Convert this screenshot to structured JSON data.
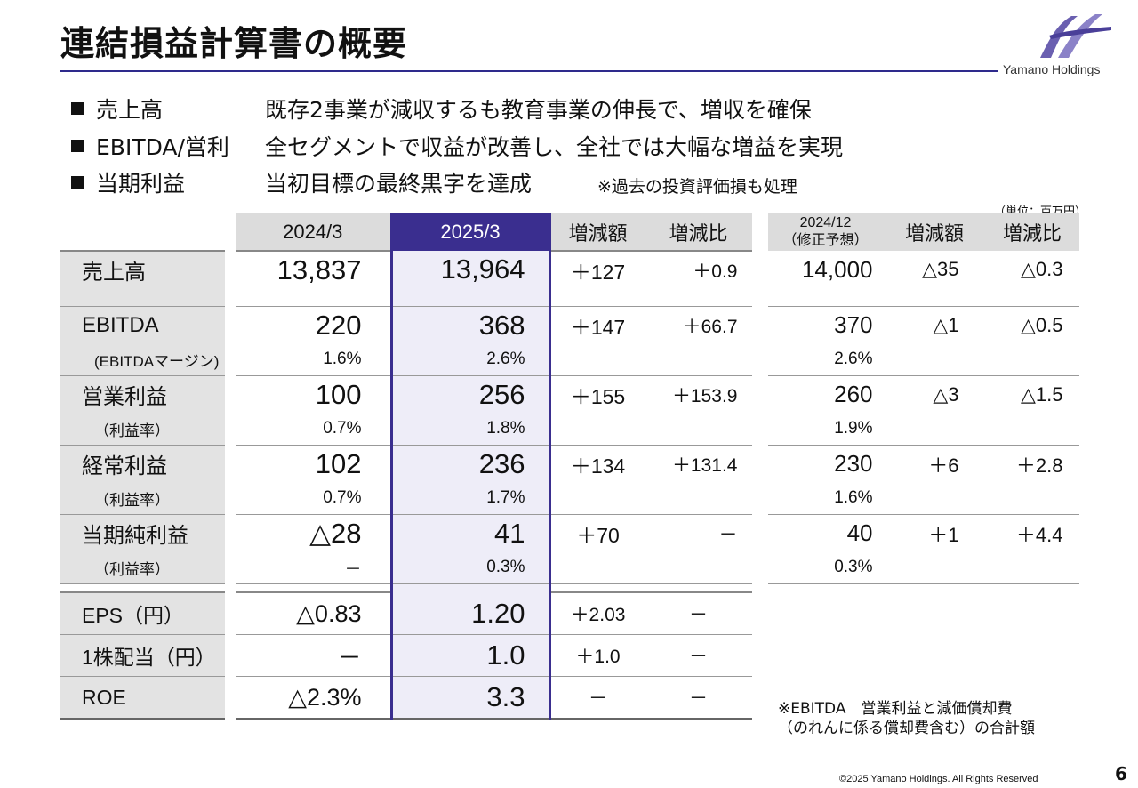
{
  "header": {
    "title": "連結損益計算書の概要",
    "logo_text": "Yamano Holdings"
  },
  "bullets": [
    {
      "label": "売上高",
      "text": "既存2事業が減収するも教育事業の伸長で、増収を確保",
      "note": ""
    },
    {
      "label": "EBITDA/営利",
      "text": "全セグメントで収益が改善し、全社では大幅な増益を実現",
      "note": ""
    },
    {
      "label": "当期利益",
      "text": "当初目標の最終黒字を達成",
      "note": "※過去の投資評価損も処理"
    }
  ],
  "unit": "（単位：百万円）",
  "table": {
    "headers": {
      "y2024": "2024/3",
      "y2025": "2025/3",
      "diff": "増減額",
      "ratio": "増減比",
      "forecast_line1": "2024/12",
      "forecast_line2": "（修正予想）",
      "fdiff": "増減額",
      "fratio": "増減比"
    },
    "rows": [
      {
        "label": "売上高",
        "sublabel": "",
        "y2024": "13,837",
        "y2024_sub": "",
        "y2025": "13,964",
        "y2025_sub": "",
        "diff": "＋127",
        "ratio": "＋0.9",
        "forecast": "14,000",
        "forecast_sub": "",
        "fdiff": "△35",
        "fratio": "△0.3"
      },
      {
        "label": "EBITDA",
        "sublabel": "(EBITDAマージン)",
        "y2024": "220",
        "y2024_sub": "1.6%",
        "y2025": "368",
        "y2025_sub": "2.6%",
        "diff": "＋147",
        "ratio": "＋66.7",
        "forecast": "370",
        "forecast_sub": "2.6%",
        "fdiff": "△1",
        "fratio": "△0.5"
      },
      {
        "label": "営業利益",
        "sublabel": "（利益率）",
        "y2024": "100",
        "y2024_sub": "0.7%",
        "y2025": "256",
        "y2025_sub": "1.8%",
        "diff": "＋155",
        "ratio": "＋153.9",
        "forecast": "260",
        "forecast_sub": "1.9%",
        "fdiff": "△3",
        "fratio": "△1.5"
      },
      {
        "label": "経常利益",
        "sublabel": "（利益率）",
        "y2024": "102",
        "y2024_sub": "0.7%",
        "y2025": "236",
        "y2025_sub": "1.7%",
        "diff": "＋134",
        "ratio": "＋131.4",
        "forecast": "230",
        "forecast_sub": "1.6%",
        "fdiff": "＋6",
        "fratio": "＋2.8"
      },
      {
        "label": "当期純利益",
        "sublabel": "（利益率）",
        "y2024": "△28",
        "y2024_sub": "－",
        "y2025": "41",
        "y2025_sub": "0.3%",
        "diff": "＋70",
        "ratio": "－",
        "forecast": "40",
        "forecast_sub": "0.3%",
        "fdiff": "＋1",
        "fratio": "＋4.4"
      }
    ],
    "extra_rows": [
      {
        "label": "EPS（円）",
        "y2024": "△0.83",
        "y2025": "1.20",
        "diff": "＋2.03",
        "ratio": "－"
      },
      {
        "label": "1株配当（円）",
        "y2024": "－",
        "y2025": "1.0",
        "diff": "＋1.0",
        "ratio": "－"
      },
      {
        "label": "ROE",
        "y2024": "△2.3%",
        "y2025": "3.3",
        "diff": "－",
        "ratio": "－"
      }
    ]
  },
  "footnote": {
    "line1": "※EBITDA　営業利益と減価償却費",
    "line2": "（のれんに係る償却費含む）の合計額"
  },
  "footer": {
    "copyright": "©2025 Yamano Holdings. All Rights Reserved",
    "page": "6"
  }
}
